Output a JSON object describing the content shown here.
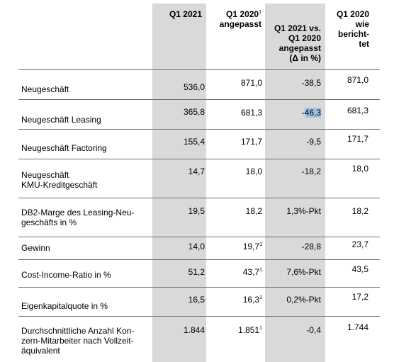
{
  "headers": {
    "col1": [
      "Q1 2021"
    ],
    "col2_line1": "Q1 2020",
    "col2_sup": "1",
    "col2_line2": "angepasst",
    "col3": [
      "Q1 2021 vs.",
      "Q1 2020",
      "angepasst",
      "(Δ in %)"
    ],
    "col4": [
      "Q1 2020",
      "wie",
      "bericht-",
      "tet"
    ]
  },
  "rows": [
    {
      "label": [
        "Neugeschäft"
      ],
      "q1_2021": "536,0",
      "q1_2020_adj": "871,0",
      "q1_2020_adj_sup": "",
      "delta": "-38,5",
      "q1_2020_reported": "871,0"
    },
    {
      "label": [
        "Neugeschäft Leasing"
      ],
      "q1_2021": "365,8",
      "q1_2020_adj": "681,3",
      "q1_2020_adj_sup": "",
      "delta_prefix": "-",
      "delta_highlight": "46,3",
      "q1_2020_reported": "681,3"
    },
    {
      "label": [
        "Neugeschäft Factoring"
      ],
      "q1_2021": "155,4",
      "q1_2020_adj": "171,7",
      "q1_2020_adj_sup": "",
      "delta": "-9,5",
      "q1_2020_reported": "171,7"
    },
    {
      "label": [
        "Neugeschäft",
        "KMU-Kreditgeschäft"
      ],
      "q1_2021": "14,7",
      "q1_2020_adj": "18,0",
      "q1_2020_adj_sup": "",
      "delta": "-18,2",
      "q1_2020_reported": "18,0"
    },
    {
      "label": [
        "DB2-Marge des Leasing-Neu-",
        "geschäfts in %"
      ],
      "q1_2021": "19,5",
      "q1_2020_adj": "18,2",
      "q1_2020_adj_sup": "",
      "delta": "1,3%-Pkt",
      "q1_2020_reported": "18,2"
    },
    {
      "label": [
        "Gewinn"
      ],
      "q1_2021": "14,0",
      "q1_2020_adj": "19,7",
      "q1_2020_adj_sup": "1",
      "delta": "-28,8",
      "q1_2020_reported": "23,7"
    },
    {
      "label": [
        "Cost-Income-Ratio in %"
      ],
      "q1_2021": "51,2",
      "q1_2020_adj": "43,7",
      "q1_2020_adj_sup": "1",
      "delta": "7,6%-Pkt",
      "q1_2020_reported": "43,5"
    },
    {
      "label": [
        "Eigenkapitalquote in %"
      ],
      "q1_2021": "16,5",
      "q1_2020_adj": "16,3",
      "q1_2020_adj_sup": "1",
      "delta": "0,2%-Pkt",
      "q1_2020_reported": "17,2"
    },
    {
      "label": [
        "Durchschnittliche Anzahl Kon-",
        "zern-Mitarbeiter nach Vollzeit-",
        "äquivalent"
      ],
      "q1_2021": "1.844",
      "q1_2020_adj": "1.851",
      "q1_2020_adj_sup": "1",
      "delta": "-0,4",
      "q1_2020_reported": "1.744"
    }
  ]
}
